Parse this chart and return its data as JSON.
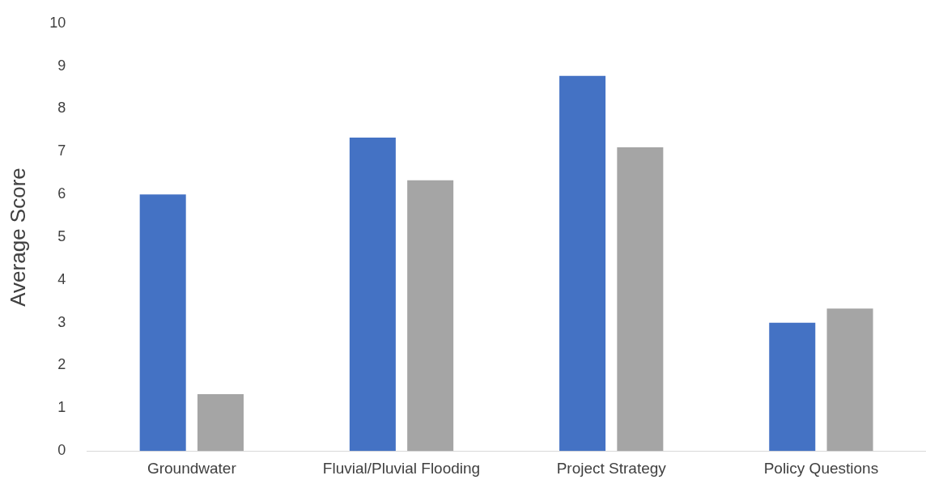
{
  "chart_data": {
    "type": "bar",
    "ylabel": "Average Score",
    "categories": [
      "Groundwater",
      "Fluvial/Pluvial Flooding",
      "Project Strategy",
      "Policy Questions"
    ],
    "series": [
      {
        "color": "#4472c4",
        "values": [
          6,
          7.33,
          8.77,
          3
        ]
      },
      {
        "color": "#a5a5a5",
        "values": [
          1.33,
          6.33,
          7.1,
          3.33
        ]
      }
    ],
    "ylim": [
      0,
      10
    ],
    "yticks": [
      0,
      1,
      2,
      3,
      4,
      5,
      6,
      7,
      8,
      9,
      10
    ],
    "grid": false,
    "legend": false
  }
}
